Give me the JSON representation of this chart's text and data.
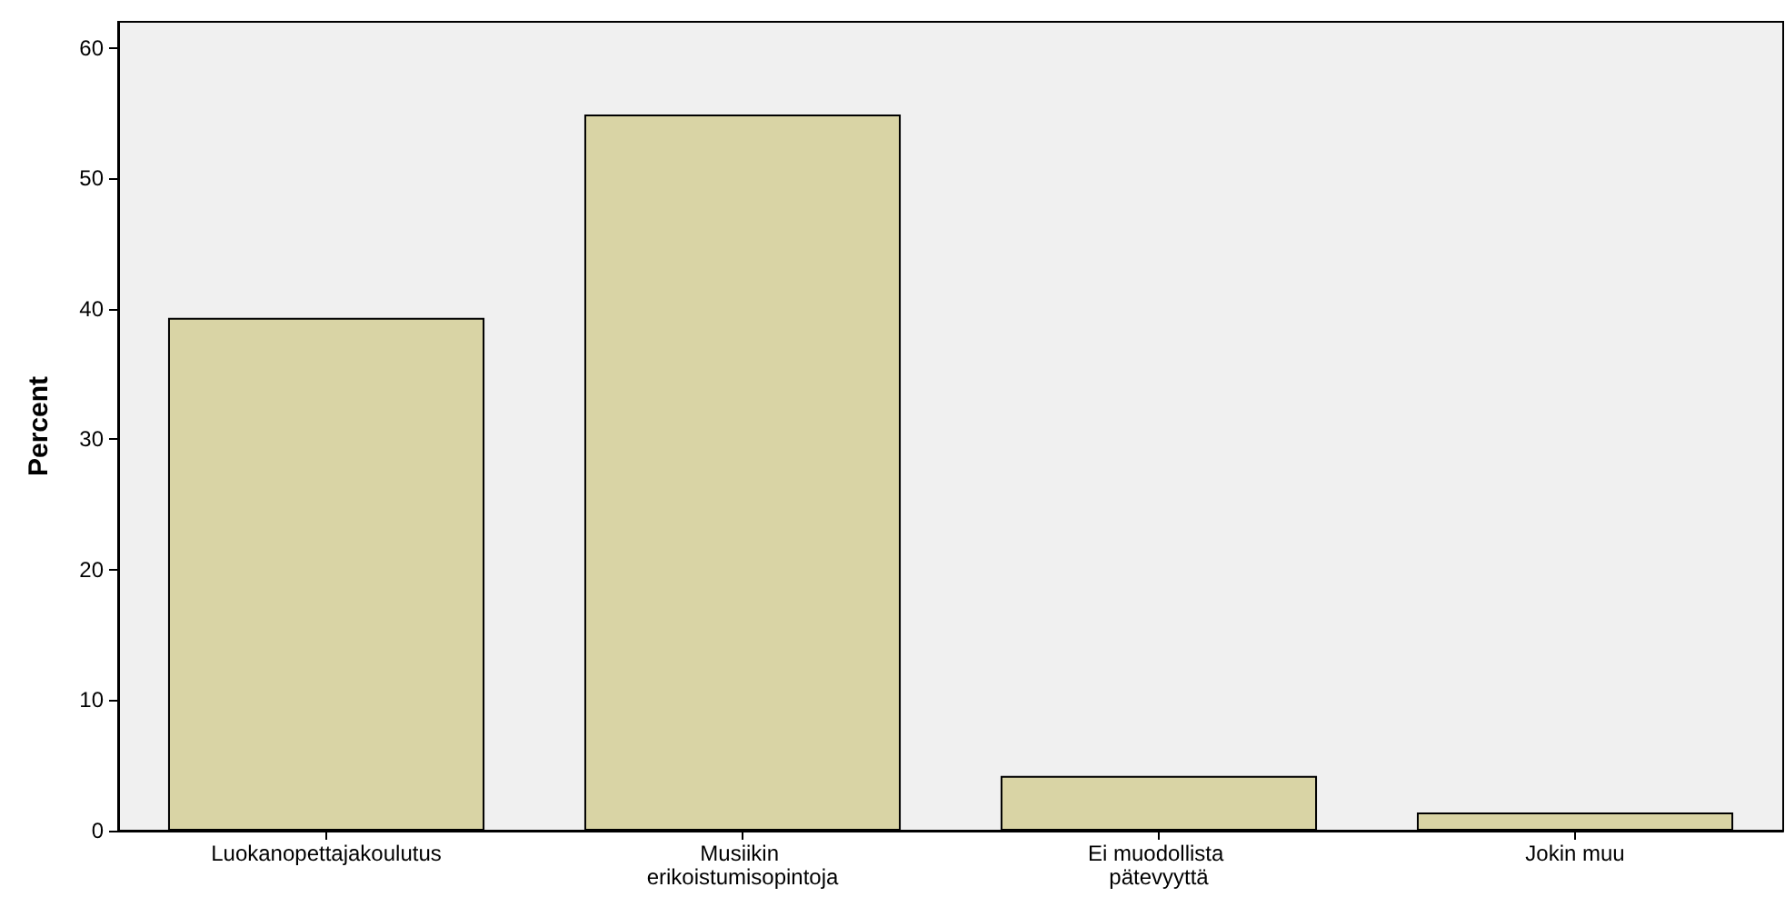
{
  "chart_data": {
    "type": "bar",
    "ylabel": "Percent",
    "categories": [
      "Luokanopettajakoulutus",
      "Musiikin erikoistumisopintoja",
      "Ei muodollista pätevyyttä",
      "Jokin muu"
    ],
    "values": [
      39.3,
      54.9,
      4.2,
      1.4
    ],
    "color": "#d9d4a5",
    "ylim": [
      0,
      62
    ],
    "yticks": [
      0,
      10,
      20,
      30,
      40,
      50,
      60
    ],
    "grid": false
  }
}
